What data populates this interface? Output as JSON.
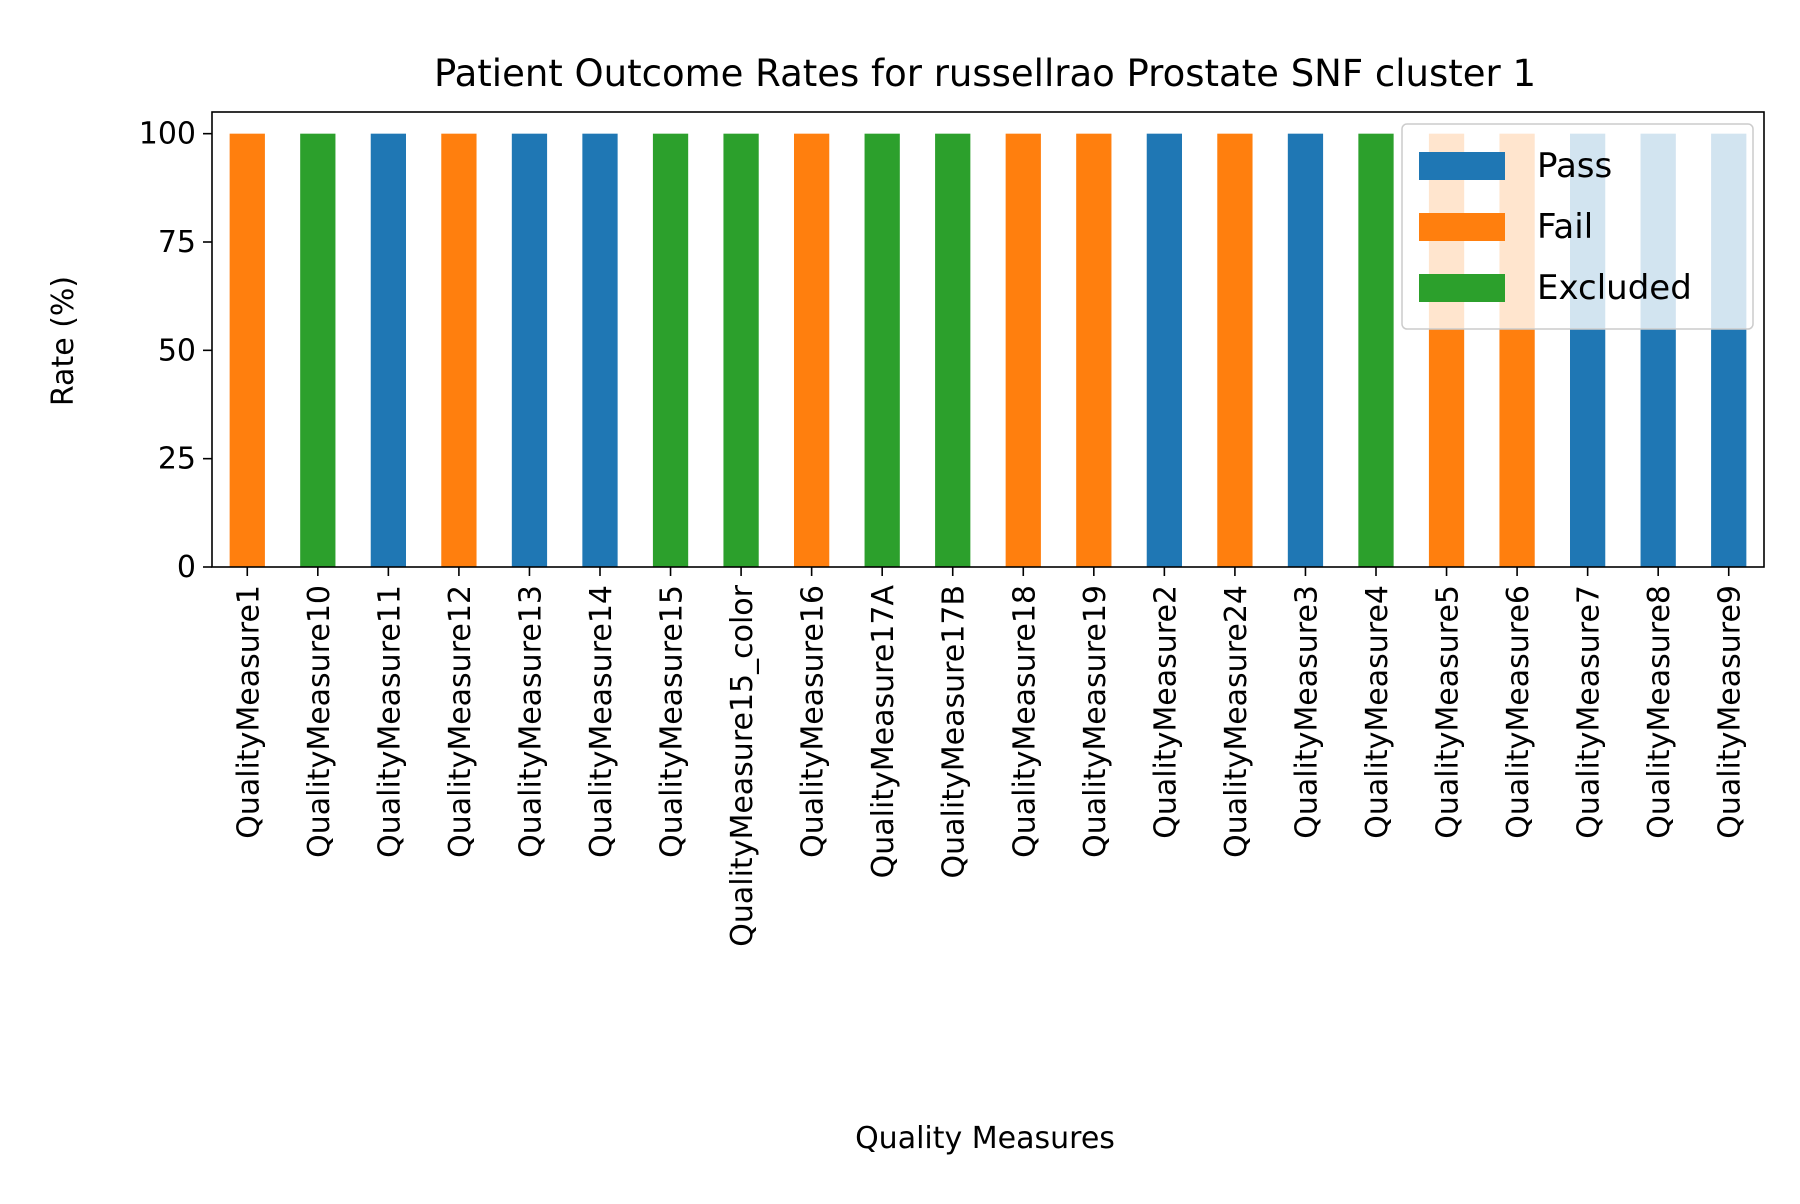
{
  "chart_data": {
    "type": "bar",
    "title": "Patient Outcome Rates for russellrao Prostate SNF cluster 1",
    "xlabel": "Quality Measures",
    "ylabel": "Rate (%)",
    "ylim": [
      0,
      105
    ],
    "yticks": [
      0,
      25,
      50,
      75,
      100
    ],
    "grid": false,
    "legend_position": "top-right",
    "categories": [
      "QualityMeasure1",
      "QualityMeasure10",
      "QualityMeasure11",
      "QualityMeasure12",
      "QualityMeasure13",
      "QualityMeasure14",
      "QualityMeasure15",
      "QualityMeasure15_color",
      "QualityMeasure16",
      "QualityMeasure17A",
      "QualityMeasure17B",
      "QualityMeasure18",
      "QualityMeasure19",
      "QualityMeasure2",
      "QualityMeasure24",
      "QualityMeasure3",
      "QualityMeasure4",
      "QualityMeasure5",
      "QualityMeasure6",
      "QualityMeasure7",
      "QualityMeasure8",
      "QualityMeasure9"
    ],
    "series": [
      {
        "name": "Pass",
        "color": "#1f77b4",
        "values": [
          0,
          0,
          100,
          0,
          100,
          100,
          0,
          0,
          0,
          0,
          0,
          0,
          0,
          100,
          0,
          100,
          0,
          0,
          0,
          100,
          100,
          100
        ]
      },
      {
        "name": "Fail",
        "color": "#ff7f0e",
        "values": [
          100,
          0,
          0,
          100,
          0,
          0,
          0,
          0,
          100,
          0,
          0,
          100,
          100,
          0,
          100,
          0,
          0,
          100,
          100,
          0,
          0,
          0
        ]
      },
      {
        "name": "Excluded",
        "color": "#2ca02c",
        "values": [
          0,
          100,
          0,
          0,
          0,
          0,
          100,
          100,
          0,
          100,
          100,
          0,
          0,
          0,
          0,
          0,
          100,
          0,
          0,
          0,
          0,
          0
        ]
      }
    ]
  }
}
